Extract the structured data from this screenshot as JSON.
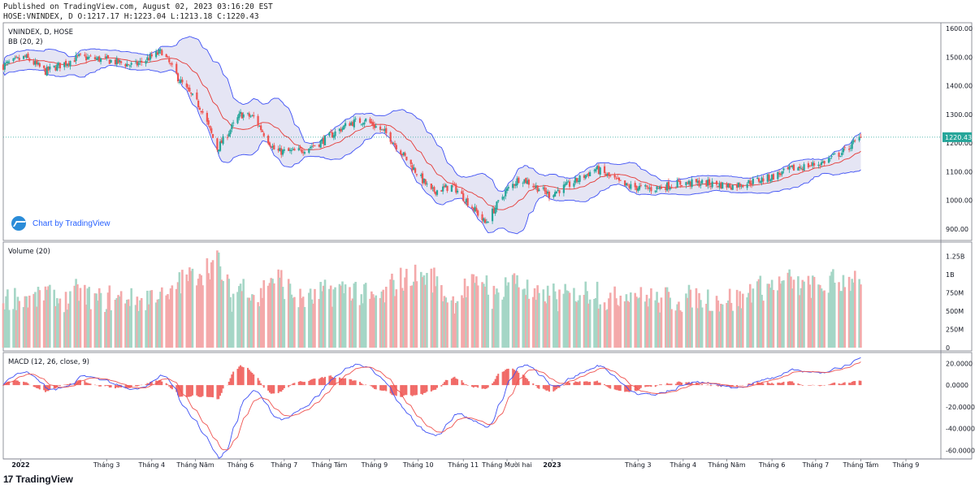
{
  "header": {
    "published": "Published on TradingView.com, August 02, 2023 03:16:20 EST",
    "ohlc": "HOSE:VNINDEX, D O:1217.17 H:1223.04 L:1213.18 C:1220.43"
  },
  "footer": {
    "brand": "TradingView",
    "mark": "17"
  },
  "watermark": "Chart by TradingView",
  "colors": {
    "up": "#26a69a",
    "down": "#ef5350",
    "vol_up": "#a5d6c6",
    "vol_down": "#f4a9aa",
    "bb_band": "#3f51f5",
    "bb_fill": "#dcdcf0",
    "bb_basis": "#e53935",
    "macd": "#3f51f5",
    "signal": "#ef5350",
    "last_price": "#26a69a"
  },
  "chart_data": [
    {
      "type": "candlestick",
      "title": "VNINDEX, D, HOSE",
      "indicator": "BB (20, 2)",
      "ylim": [
        860,
        1620
      ],
      "y_ticks": [
        "1600.00",
        "1500.00",
        "1400.00",
        "1300.00",
        "1200.00",
        "1100.00",
        "1000.00",
        "900.00"
      ],
      "y_tick_values": [
        1600,
        1500,
        1400,
        1300,
        1200,
        1100,
        1000,
        900
      ],
      "last_price": 1220.43,
      "last_price_label": "1220.43",
      "anchors": [
        [
          "2021-12-20",
          1470
        ],
        [
          "2022-01-04",
          1500
        ],
        [
          "2022-01-18",
          1450
        ],
        [
          "2022-02-10",
          1500
        ],
        [
          "2022-03-01",
          1490
        ],
        [
          "2022-03-20",
          1470
        ],
        [
          "2022-04-08",
          1520
        ],
        [
          "2022-04-20",
          1420
        ],
        [
          "2022-05-05",
          1320
        ],
        [
          "2022-05-16",
          1180
        ],
        [
          "2022-06-01",
          1300
        ],
        [
          "2022-06-10",
          1290
        ],
        [
          "2022-06-25",
          1170
        ],
        [
          "2022-07-10",
          1170
        ],
        [
          "2022-07-25",
          1200
        ],
        [
          "2022-08-15",
          1270
        ],
        [
          "2022-08-26",
          1280
        ],
        [
          "2022-09-10",
          1230
        ],
        [
          "2022-09-25",
          1130
        ],
        [
          "2022-10-10",
          1030
        ],
        [
          "2022-10-25",
          1050
        ],
        [
          "2022-11-10",
          960
        ],
        [
          "2022-11-16",
          920
        ],
        [
          "2022-11-30",
          1030
        ],
        [
          "2022-12-10",
          1080
        ],
        [
          "2022-12-30",
          1020
        ],
        [
          "2023-01-15",
          1060
        ],
        [
          "2023-01-31",
          1110
        ],
        [
          "2023-02-20",
          1050
        ],
        [
          "2023-03-10",
          1040
        ],
        [
          "2023-03-31",
          1060
        ],
        [
          "2023-04-15",
          1060
        ],
        [
          "2023-05-05",
          1050
        ],
        [
          "2023-05-31",
          1080
        ],
        [
          "2023-06-15",
          1110
        ],
        [
          "2023-07-05",
          1130
        ],
        [
          "2023-07-20",
          1170
        ],
        [
          "2023-08-01",
          1220.43
        ]
      ],
      "x_ticks": [
        {
          "date": "2022-01-01",
          "label": "2022",
          "bold": true
        },
        {
          "date": "2022-03-01",
          "label": "Tháng 3"
        },
        {
          "date": "2022-04-01",
          "label": "Tháng 4"
        },
        {
          "date": "2022-05-01",
          "label": "Tháng Năm"
        },
        {
          "date": "2022-06-01",
          "label": "Tháng 6"
        },
        {
          "date": "2022-07-01",
          "label": "Tháng 7"
        },
        {
          "date": "2022-08-01",
          "label": "Tháng Tám"
        },
        {
          "date": "2022-09-01",
          "label": "Tháng 9"
        },
        {
          "date": "2022-10-01",
          "label": "Tháng 10"
        },
        {
          "date": "2022-11-01",
          "label": "Tháng 11"
        },
        {
          "date": "2022-12-01",
          "label": "Tháng Mười hai"
        },
        {
          "date": "2023-01-01",
          "label": "2023",
          "bold": true
        },
        {
          "date": "2023-03-01",
          "label": "Tháng 3"
        },
        {
          "date": "2023-04-01",
          "label": "Tháng 4"
        },
        {
          "date": "2023-05-01",
          "label": "Tháng Năm"
        },
        {
          "date": "2023-06-01",
          "label": "Tháng 6"
        },
        {
          "date": "2023-07-01",
          "label": "Tháng 7"
        },
        {
          "date": "2023-08-01",
          "label": "Tháng Tám"
        },
        {
          "date": "2023-09-01",
          "label": "Tháng 9"
        }
      ],
      "x_range": [
        "2021-12-20",
        "2023-09-25"
      ]
    },
    {
      "type": "bar",
      "title": "Volume (20)",
      "ylim": [
        0,
        1.4
      ],
      "unit": "B",
      "y_ticks": [
        "1.25B",
        "1B",
        "750M",
        "500M",
        "250M",
        "0"
      ],
      "y_tick_values": [
        1.25,
        1.0,
        0.75,
        0.5,
        0.25,
        0
      ]
    },
    {
      "type": "line",
      "title": "MACD (12, 26, close, 9)",
      "ylim": [
        -68,
        30
      ],
      "y_ticks": [
        "20.0000",
        "0.0000",
        "-20.0000",
        "-40.0000",
        "-60.0000"
      ],
      "y_tick_values": [
        20,
        0,
        -20,
        -40,
        -60
      ]
    }
  ]
}
